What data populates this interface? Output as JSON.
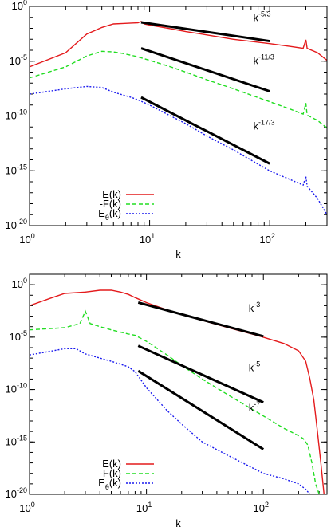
{
  "colors": {
    "E": "#e41a1c",
    "F": "#22dd22",
    "Etheta": "#1a1aee",
    "ref": "#000000"
  },
  "chart_data": [
    {
      "type": "line",
      "x_scale": "log",
      "y_scale": "log",
      "xlim": [
        1,
        300
      ],
      "ylim": [
        1e-20,
        1
      ],
      "xlabel": "k",
      "ylabel": "",
      "x_ticks": [
        1,
        10,
        100
      ],
      "y_ticks": [
        1e-20,
        1e-15,
        1e-10,
        1e-05,
        1
      ],
      "legend": "bottom-left",
      "series": [
        {
          "name": "E(k)",
          "color_key": "E",
          "style": "solid",
          "points": [
            [
              1,
              3e-06
            ],
            [
              2,
              6e-05
            ],
            [
              3,
              0.003
            ],
            [
              4,
              0.012
            ],
            [
              5,
              0.025
            ],
            [
              6,
              0.028
            ],
            [
              7,
              0.03
            ],
            [
              8,
              0.032
            ],
            [
              8.5,
              0.042
            ],
            [
              9,
              0.025
            ],
            [
              10,
              0.02
            ],
            [
              15,
              0.009
            ],
            [
              20,
              0.005
            ],
            [
              30,
              0.0025
            ],
            [
              50,
              0.001
            ],
            [
              100,
              0.0004
            ],
            [
              150,
              0.00022
            ],
            [
              190,
              0.00015
            ],
            [
              200,
              0.0009
            ],
            [
              205,
              0.00015
            ],
            [
              250,
              6e-05
            ],
            [
              300,
              1.2e-05
            ]
          ]
        },
        {
          "name": "-F(k)",
          "color_key": "F",
          "style": "dashed",
          "points": [
            [
              1,
              3e-07
            ],
            [
              2,
              3e-06
            ],
            [
              3,
              3e-05
            ],
            [
              4,
              8e-05
            ],
            [
              5,
              7e-05
            ],
            [
              6,
              5e-05
            ],
            [
              7,
              3.5e-05
            ],
            [
              8,
              2.5e-05
            ],
            [
              10,
              1.2e-05
            ],
            [
              15,
              3e-06
            ],
            [
              20,
              1e-06
            ],
            [
              30,
              2e-07
            ],
            [
              50,
              3e-08
            ],
            [
              100,
              2e-09
            ],
            [
              150,
              4e-10
            ],
            [
              190,
              1.5e-10
            ],
            [
              200,
              1.5e-09
            ],
            [
              205,
              1.2e-10
            ],
            [
              250,
              4e-11
            ],
            [
              300,
              8e-12
            ]
          ]
        },
        {
          "name": "Eθ(k)",
          "color_key": "Etheta",
          "style": "dotted",
          "points": [
            [
              1,
              1e-08
            ],
            [
              2,
              3e-08
            ],
            [
              3,
              5e-08
            ],
            [
              4,
              4e-08
            ],
            [
              5,
              1.5e-08
            ],
            [
              7,
              5e-09
            ],
            [
              8,
              3e-09
            ],
            [
              10,
              1e-09
            ],
            [
              15,
              1e-10
            ],
            [
              20,
              2e-11
            ],
            [
              30,
              1.5e-12
            ],
            [
              50,
              8e-14
            ],
            [
              100,
              1e-15
            ],
            [
              150,
              1.5e-16
            ],
            [
              190,
              5e-17
            ],
            [
              200,
              3e-16
            ],
            [
              205,
              4e-17
            ],
            [
              250,
              3e-18
            ],
            [
              300,
              1e-19
            ]
          ]
        }
      ],
      "reference_lines": [
        {
          "label": "k",
          "exponent": "-5/3",
          "x": [
            8.5,
            100
          ],
          "y": [
            0.035,
            0.00068
          ]
        },
        {
          "label": "k",
          "exponent": "-11/3",
          "x": [
            8.5,
            100
          ],
          "y": [
            0.00015,
            1.8e-08
          ]
        },
        {
          "label": "k",
          "exponent": "-17/3",
          "x": [
            8.5,
            100
          ],
          "y": [
            5e-09,
            4.5e-15
          ]
        }
      ]
    },
    {
      "type": "line",
      "x_scale": "log",
      "y_scale": "log",
      "xlim": [
        1,
        350
      ],
      "ylim": [
        1e-20,
        10
      ],
      "xlabel": "k",
      "ylabel": "",
      "x_ticks": [
        1,
        10,
        100
      ],
      "y_ticks": [
        1e-20,
        1e-15,
        1e-10,
        1e-05,
        1
      ],
      "legend": "bottom-left",
      "series": [
        {
          "name": "E(k)",
          "color_key": "E",
          "style": "solid",
          "points": [
            [
              1,
              0.01
            ],
            [
              1.5,
              0.05
            ],
            [
              2,
              0.15
            ],
            [
              3,
              0.2
            ],
            [
              4,
              0.3
            ],
            [
              5,
              0.3
            ],
            [
              6,
              0.2
            ],
            [
              7,
              0.12
            ],
            [
              8,
              0.06
            ],
            [
              10,
              0.02
            ],
            [
              15,
              0.004
            ],
            [
              20,
              0.0015
            ],
            [
              30,
              0.0004
            ],
            [
              50,
              8e-05
            ],
            [
              80,
              2e-05
            ],
            [
              100,
              1e-05
            ],
            [
              150,
              2.5e-06
            ],
            [
              200,
              5e-07
            ],
            [
              230,
              5e-08
            ],
            [
              250,
              1e-09
            ],
            [
              270,
              1e-11
            ],
            [
              290,
              1e-14
            ],
            [
              310,
              1e-17
            ],
            [
              330,
              1e-20
            ]
          ]
        },
        {
          "name": "-F(k)",
          "color_key": "F",
          "style": "dashed",
          "points": [
            [
              1,
              5e-05
            ],
            [
              2,
              8e-05
            ],
            [
              2.7,
              0.0002
            ],
            [
              3,
              0.003
            ],
            [
              3.3,
              0.0002
            ],
            [
              4,
              0.0001
            ],
            [
              5,
              5e-05
            ],
            [
              6,
              3e-05
            ],
            [
              7,
              2e-05
            ],
            [
              8,
              1.5e-05
            ],
            [
              10,
              4e-06
            ],
            [
              15,
              2e-07
            ],
            [
              20,
              2e-08
            ],
            [
              30,
              1e-09
            ],
            [
              50,
              3e-11
            ],
            [
              100,
              3e-13
            ],
            [
              150,
              2e-14
            ],
            [
              200,
              4e-15
            ],
            [
              220,
              2e-15
            ],
            [
              240,
              5e-16
            ],
            [
              260,
              1e-17
            ],
            [
              280,
              1e-19
            ],
            [
              300,
              1e-20
            ]
          ]
        },
        {
          "name": "Eθ(k)",
          "color_key": "Etheta",
          "style": "dotted",
          "points": [
            [
              1,
              2e-07
            ],
            [
              2,
              8e-07
            ],
            [
              2.5,
              8e-07
            ],
            [
              3,
              2.5e-07
            ],
            [
              4,
              1e-07
            ],
            [
              5,
              5e-08
            ],
            [
              7,
              1.5e-08
            ],
            [
              8,
              5e-09
            ],
            [
              10,
              1.5e-10
            ],
            [
              15,
              1e-12
            ],
            [
              20,
              5e-14
            ],
            [
              30,
              1e-15
            ],
            [
              50,
              5e-17
            ],
            [
              100,
              1e-18
            ],
            [
              150,
              3e-19
            ],
            [
              200,
              1e-19
            ],
            [
              230,
              3e-20
            ],
            [
              250,
              1e-20
            ]
          ]
        }
      ],
      "reference_lines": [
        {
          "label": "k",
          "exponent": "-3",
          "x": [
            8.5,
            100
          ],
          "y": [
            0.02,
            1.2e-05
          ]
        },
        {
          "label": "k",
          "exponent": "-5",
          "x": [
            8.5,
            100
          ],
          "y": [
            1.5e-06,
            6e-12
          ]
        },
        {
          "label": "k",
          "exponent": "-7",
          "x": [
            8.5,
            100
          ],
          "y": [
            6e-09,
            2e-16
          ]
        }
      ]
    }
  ]
}
